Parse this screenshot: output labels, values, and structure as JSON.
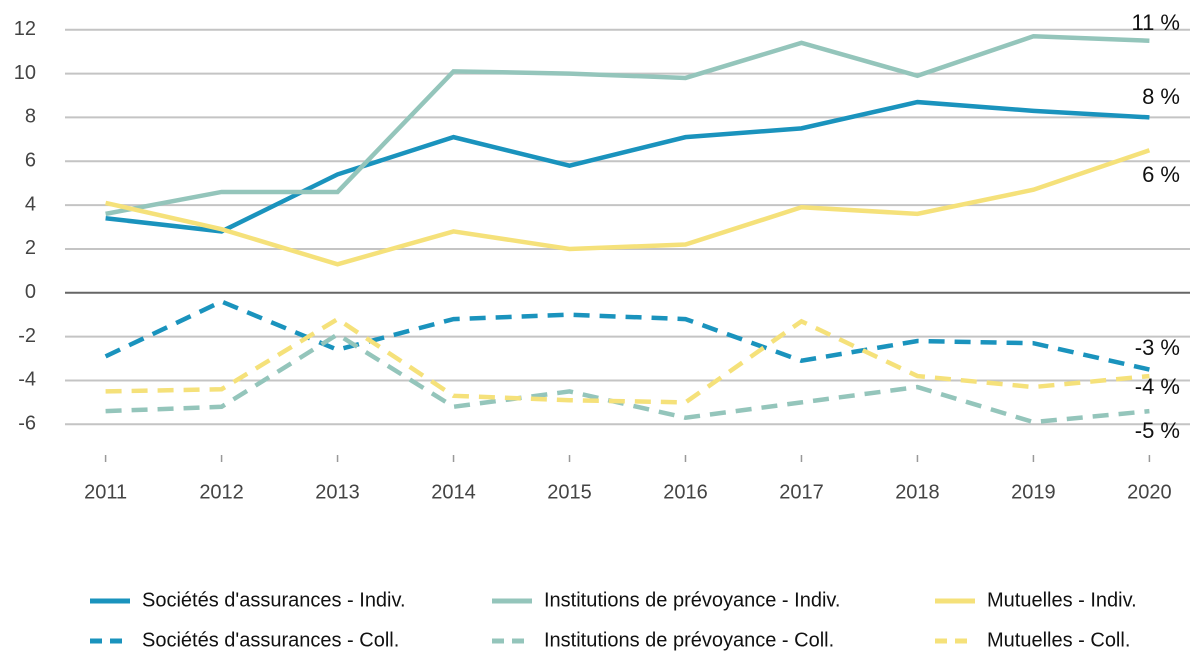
{
  "chart_data": {
    "type": "line",
    "x": [
      2011,
      2012,
      2013,
      2014,
      2015,
      2016,
      2017,
      2018,
      2019,
      2020
    ],
    "xlim": [
      2010.65,
      2020.35
    ],
    "xticks": [
      2011,
      2012,
      2013,
      2014,
      2015,
      2016,
      2017,
      2018,
      2019,
      2020
    ],
    "ylim": [
      -7.4,
      12.9
    ],
    "yticks": [
      -6,
      -4,
      -2,
      0,
      2,
      4,
      6,
      8,
      10,
      12
    ],
    "grid": true,
    "legend": "bottom",
    "series": [
      {
        "name": "Sociétés d'assurances - Indiv.",
        "color": "#1a93bd",
        "linestyle": "solid",
        "values": [
          3.4,
          2.8,
          5.4,
          7.1,
          5.8,
          7.1,
          7.5,
          8.7,
          8.3,
          8.0
        ]
      },
      {
        "name": "Institutions de prévoyance - Indiv.",
        "color": "#94c5bb",
        "linestyle": "solid",
        "values": [
          3.6,
          4.6,
          4.6,
          10.1,
          10.0,
          9.8,
          11.4,
          9.9,
          11.7,
          11.5
        ]
      },
      {
        "name": "Mutuelles - Indiv.",
        "color": "#f5e17a",
        "linestyle": "solid",
        "values": [
          4.1,
          2.9,
          1.3,
          2.8,
          2.0,
          2.2,
          3.9,
          3.6,
          4.7,
          6.5
        ]
      },
      {
        "name": "Sociétés d'assurances - Coll.",
        "color": "#1a93bd",
        "linestyle": "dashed",
        "values": [
          -2.9,
          -0.4,
          -2.6,
          -1.2,
          -1.0,
          -1.2,
          -3.1,
          -2.2,
          -2.3,
          -3.5
        ]
      },
      {
        "name": "Institutions de prévoyance - Coll.",
        "color": "#94c5bb",
        "linestyle": "dashed",
        "values": [
          -5.4,
          -5.2,
          -1.9,
          -5.2,
          -4.5,
          -5.7,
          -5.0,
          -4.3,
          -5.9,
          -5.4
        ]
      },
      {
        "name": "Mutuelles - Coll.",
        "color": "#f5e17a",
        "linestyle": "dashed",
        "values": [
          -4.5,
          -4.4,
          -1.2,
          -4.7,
          -4.9,
          -5.0,
          -1.3,
          -3.8,
          -4.3,
          -3.8
        ]
      }
    ],
    "annotations": [
      "11 %",
      "8 %",
      "6 %",
      "-3 %",
      "-4 %",
      "-5 %"
    ]
  }
}
